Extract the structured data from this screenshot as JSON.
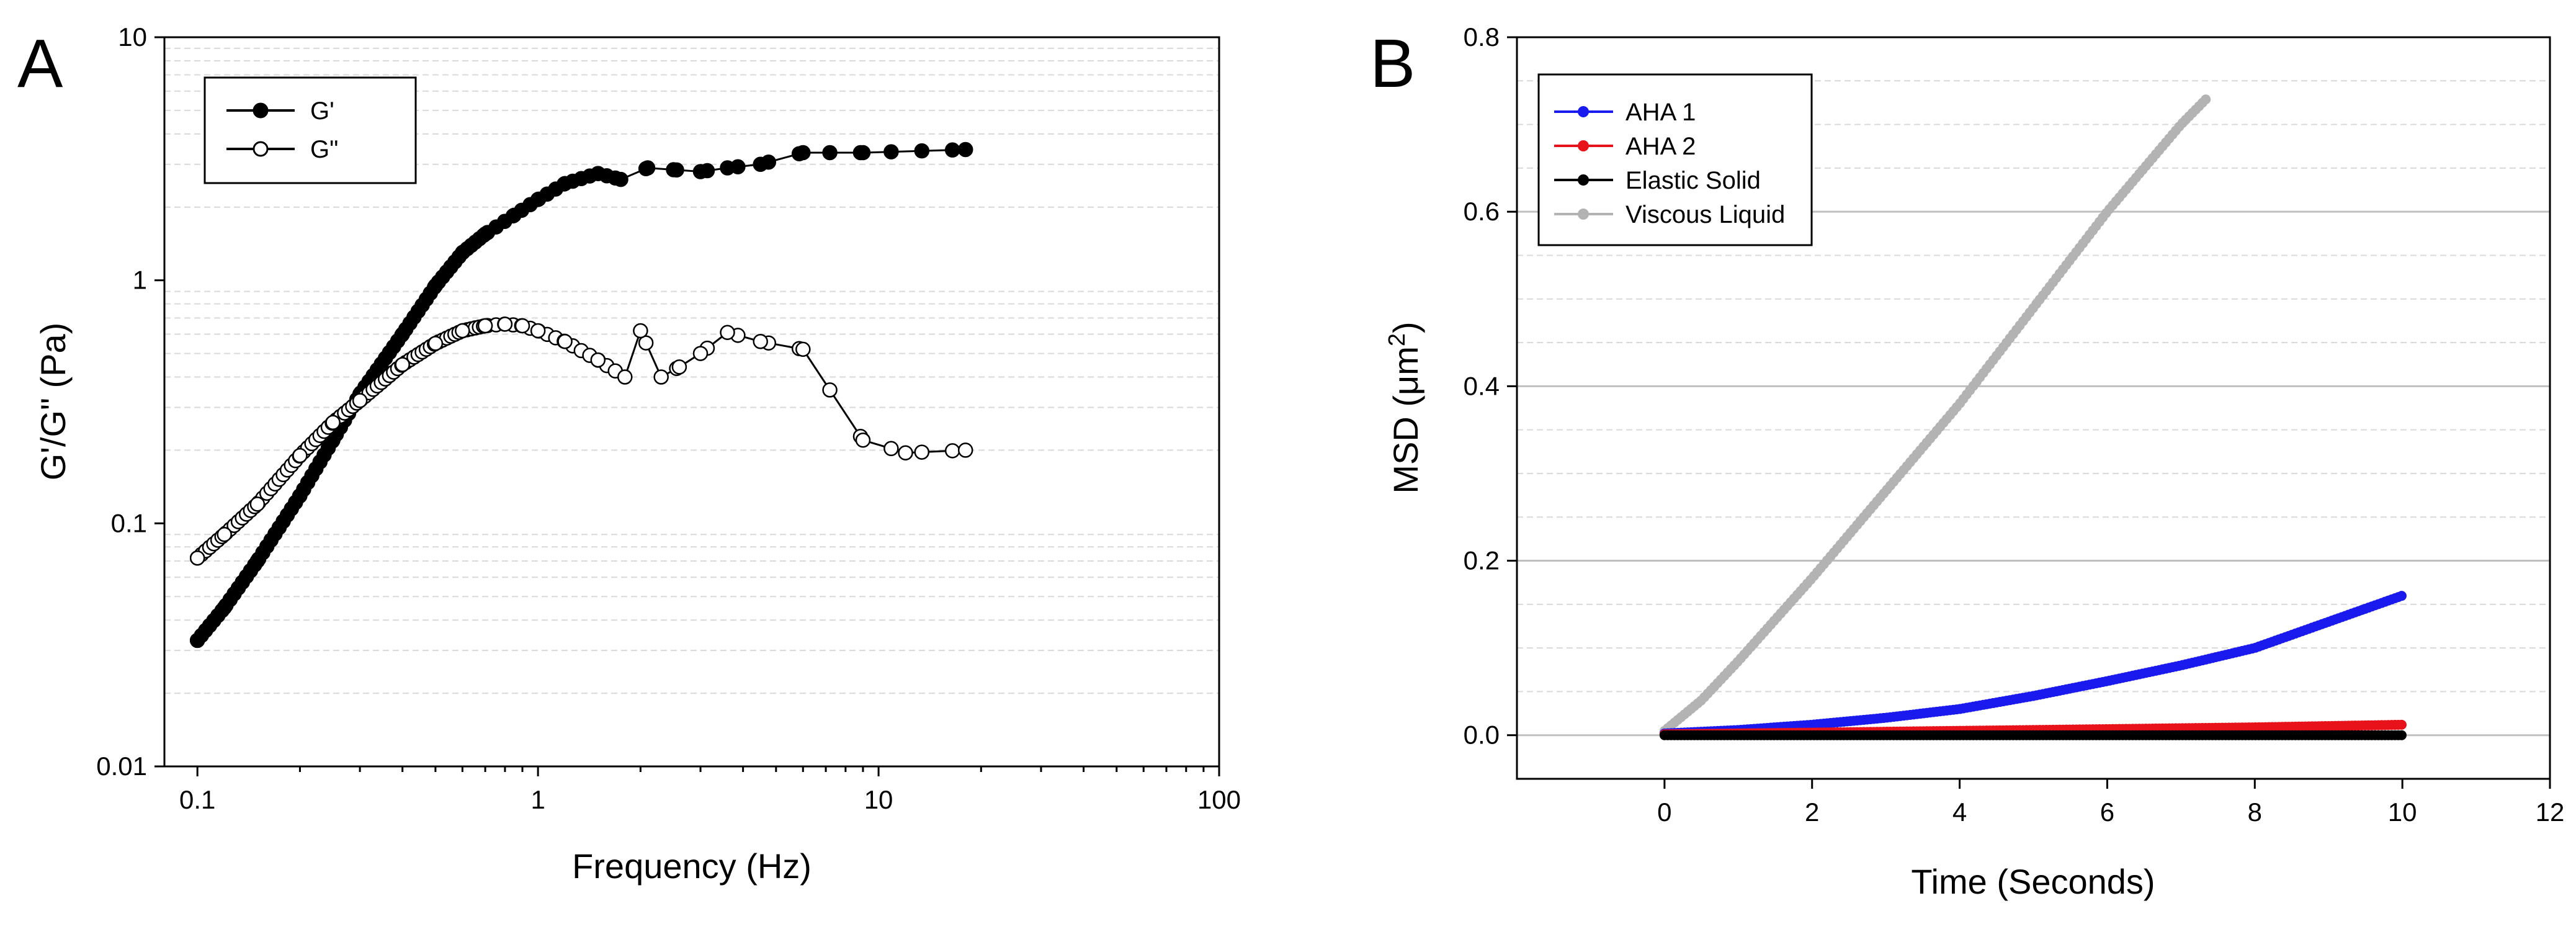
{
  "chart_data": [
    {
      "panel": "A",
      "type": "line",
      "scale": "log-log",
      "xlabel": "Frequency (Hz)",
      "ylabel": "G'/G\" (Pa)",
      "xlim": [
        0.08,
        100
      ],
      "ylim": [
        0.01,
        10
      ],
      "x_ticks": [
        "0.1",
        "1",
        "10",
        "100"
      ],
      "y_ticks": [
        "0.01",
        "0.1",
        "1",
        "10"
      ],
      "grid": "minor dashed horizontal",
      "legend": {
        "placement": "top-left",
        "entries": [
          "G'",
          "G\""
        ]
      },
      "series": [
        {
          "name": "G'",
          "marker": "filled-circle",
          "color": "#000000",
          "points": [
            [
              0.1,
              0.033
            ],
            [
              0.12,
              0.045
            ],
            [
              0.15,
              0.07
            ],
            [
              0.2,
              0.13
            ],
            [
              0.25,
              0.22
            ],
            [
              0.3,
              0.34
            ],
            [
              0.4,
              0.6
            ],
            [
              0.5,
              0.95
            ],
            [
              0.6,
              1.3
            ],
            [
              0.7,
              1.55
            ],
            [
              0.85,
              1.85
            ],
            [
              1.0,
              2.15
            ],
            [
              1.2,
              2.5
            ],
            [
              1.5,
              2.75
            ],
            [
              1.75,
              2.6
            ],
            [
              2.1,
              2.9
            ],
            [
              2.5,
              2.85
            ],
            [
              3.0,
              2.8
            ],
            [
              3.6,
              2.9
            ],
            [
              4.5,
              3.0
            ],
            [
              6.0,
              3.35
            ],
            [
              9.0,
              3.35
            ],
            [
              18.0,
              3.45
            ]
          ]
        },
        {
          "name": "G\"",
          "marker": "open-circle",
          "color": "#000000",
          "points": [
            [
              0.1,
              0.072
            ],
            [
              0.12,
              0.09
            ],
            [
              0.15,
              0.12
            ],
            [
              0.2,
              0.19
            ],
            [
              0.25,
              0.26
            ],
            [
              0.3,
              0.32
            ],
            [
              0.4,
              0.45
            ],
            [
              0.5,
              0.55
            ],
            [
              0.6,
              0.62
            ],
            [
              0.7,
              0.65
            ],
            [
              0.8,
              0.66
            ],
            [
              0.9,
              0.65
            ],
            [
              1.0,
              0.62
            ],
            [
              1.2,
              0.56
            ],
            [
              1.5,
              0.47
            ],
            [
              1.8,
              0.4
            ],
            [
              2.0,
              0.62
            ],
            [
              2.3,
              0.4
            ],
            [
              2.6,
              0.44
            ],
            [
              3.0,
              0.5
            ],
            [
              3.6,
              0.61
            ],
            [
              4.5,
              0.56
            ],
            [
              6.0,
              0.52
            ],
            [
              9.0,
              0.22
            ],
            [
              12.0,
              0.195
            ],
            [
              18.0,
              0.2
            ]
          ]
        }
      ]
    },
    {
      "panel": "B",
      "type": "line",
      "xlabel": "Time (Seconds)",
      "ylabel_prefix": "MSD (μm",
      "ylabel_sup": "2",
      "ylabel_suffix": ")",
      "xlim": [
        -2,
        12
      ],
      "ylim": [
        -0.05,
        0.8
      ],
      "x_ticks": [
        "0",
        "2",
        "4",
        "6",
        "8",
        "10",
        "12"
      ],
      "y_ticks": [
        "0.0",
        "0.2",
        "0.4",
        "0.6",
        "0.8"
      ],
      "grid": "horizontal",
      "legend": {
        "placement": "top-left",
        "entries": [
          "AHA 1",
          "AHA 2",
          "Elastic Solid",
          "Viscous Liquid"
        ]
      },
      "series": [
        {
          "name": "AHA 1",
          "color": "#1a1aee",
          "points": [
            [
              0,
              0.002
            ],
            [
              1,
              0.006
            ],
            [
              2,
              0.012
            ],
            [
              3,
              0.02
            ],
            [
              4,
              0.03
            ],
            [
              5,
              0.045
            ],
            [
              6,
              0.062
            ],
            [
              7,
              0.08
            ],
            [
              8,
              0.1
            ],
            [
              9,
              0.13
            ],
            [
              10,
              0.16
            ]
          ]
        },
        {
          "name": "AHA 2",
          "color": "#e8121a",
          "points": [
            [
              0,
              0.001
            ],
            [
              2,
              0.003
            ],
            [
              4,
              0.005
            ],
            [
              6,
              0.007
            ],
            [
              8,
              0.009
            ],
            [
              10,
              0.012
            ]
          ]
        },
        {
          "name": "Elastic Solid",
          "color": "#000000",
          "points": [
            [
              0,
              0.0
            ],
            [
              10,
              0.0
            ]
          ]
        },
        {
          "name": "Viscous Liquid",
          "color": "#b3b3b3",
          "points": [
            [
              0,
              0.005
            ],
            [
              0.5,
              0.04
            ],
            [
              1,
              0.085
            ],
            [
              2,
              0.18
            ],
            [
              3,
              0.28
            ],
            [
              4,
              0.38
            ],
            [
              5,
              0.49
            ],
            [
              6,
              0.6
            ],
            [
              7,
              0.7
            ],
            [
              7.35,
              0.73
            ]
          ]
        }
      ]
    }
  ],
  "panels": {
    "a": {
      "label": "A"
    },
    "b": {
      "label": "B"
    }
  }
}
